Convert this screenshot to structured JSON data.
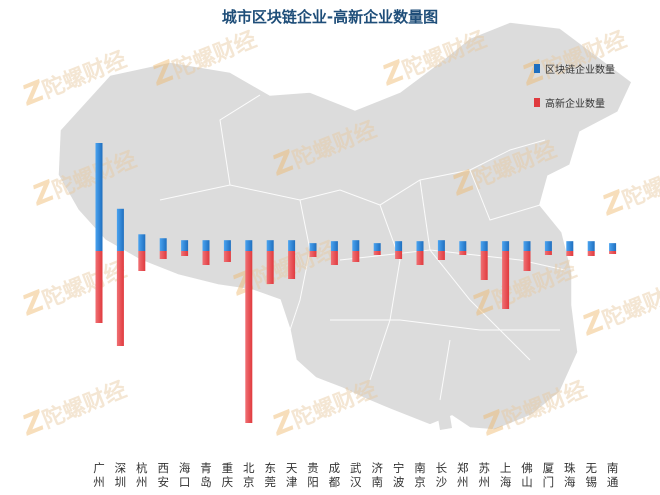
{
  "watermark": "陀螺财经",
  "chart_data": {
    "type": "bar",
    "title": "城市区块链企业-高新企业数量图",
    "categories": [
      "广州",
      "深圳",
      "杭州",
      "西安",
      "海口",
      "青岛",
      "重庆",
      "北京",
      "东莞",
      "天津",
      "贵阳",
      "成都",
      "武汉",
      "济南",
      "宁波",
      "南京",
      "长沙",
      "郑州",
      "苏州",
      "上海",
      "佛山",
      "厦门",
      "珠海",
      "无锡",
      "南通"
    ],
    "category_lines": [
      [
        "广",
        "州"
      ],
      [
        "深",
        "圳"
      ],
      [
        "杭",
        "州"
      ],
      [
        "西",
        "安"
      ],
      [
        "海",
        "口"
      ],
      [
        "青",
        "岛"
      ],
      [
        "重",
        "庆"
      ],
      [
        "北",
        "京"
      ],
      [
        "东",
        "莞"
      ],
      [
        "天",
        "津"
      ],
      [
        "贵",
        "阳"
      ],
      [
        "成",
        "都"
      ],
      [
        "武",
        "汉"
      ],
      [
        "济",
        "南"
      ],
      [
        "宁",
        "波"
      ],
      [
        "南",
        "京"
      ],
      [
        "长",
        "沙"
      ],
      [
        "郑",
        "州"
      ],
      [
        "苏",
        "州"
      ],
      [
        "上",
        "海"
      ],
      [
        "佛",
        "山"
      ],
      [
        "厦",
        "门"
      ],
      [
        "珠",
        "海"
      ],
      [
        "无",
        "锡"
      ],
      [
        "南",
        "通"
      ]
    ],
    "series": [
      {
        "name": "区块链企业数量",
        "color": "#1f6fbf",
        "direction": "up",
        "values": [
          110,
          43,
          17,
          13,
          11,
          11,
          11,
          11,
          11,
          11,
          8,
          10,
          11,
          8,
          10,
          10,
          11,
          10,
          10,
          10,
          10,
          10,
          10,
          10,
          8
        ]
      },
      {
        "name": "高新企业数量",
        "color": "#e03a3e",
        "direction": "down",
        "values": [
          72,
          95,
          20,
          8,
          5,
          14,
          11,
          172,
          33,
          28,
          6,
          14,
          11,
          4,
          8,
          14,
          9,
          4,
          29,
          58,
          20,
          4,
          5,
          5,
          3
        ]
      }
    ],
    "legend_position": "top-right",
    "grid": false,
    "xlabel": "",
    "ylabel": ""
  }
}
